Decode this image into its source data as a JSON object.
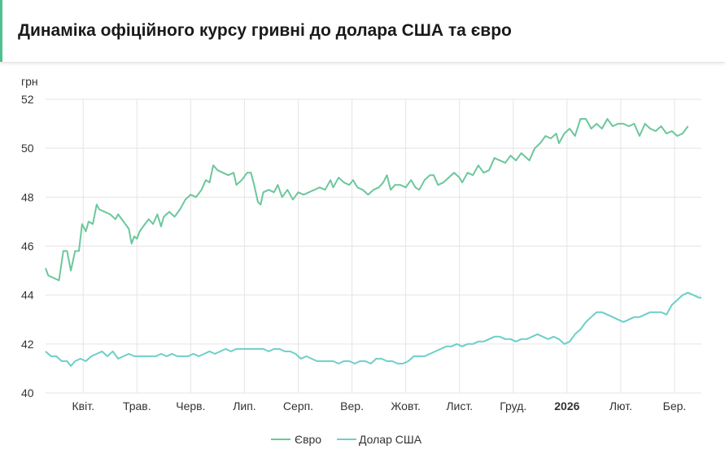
{
  "header": {
    "title": "Динаміка офіційного курсу гривні до долара США та євро"
  },
  "chart_data": {
    "type": "line",
    "title": "Динаміка офіційного курсу гривні до долара США та євро",
    "ylabel": "грн",
    "ylim": [
      40,
      52
    ],
    "yticks": [
      40,
      42,
      44,
      46,
      48,
      50,
      52
    ],
    "xlim": [
      0,
      12.2
    ],
    "xticks": [
      {
        "label": "Квіт.",
        "x": 0.7,
        "bold": false
      },
      {
        "label": "Трав.",
        "x": 1.7,
        "bold": false
      },
      {
        "label": "Черв.",
        "x": 2.7,
        "bold": false
      },
      {
        "label": "Лип.",
        "x": 3.7,
        "bold": false
      },
      {
        "label": "Серп.",
        "x": 4.7,
        "bold": false
      },
      {
        "label": "Вер.",
        "x": 5.7,
        "bold": false
      },
      {
        "label": "Жовт.",
        "x": 6.7,
        "bold": false
      },
      {
        "label": "Лист.",
        "x": 7.7,
        "bold": false
      },
      {
        "label": "Груд.",
        "x": 8.7,
        "bold": false
      },
      {
        "label": "2026",
        "x": 9.7,
        "bold": true
      },
      {
        "label": "Лют.",
        "x": 10.7,
        "bold": false
      },
      {
        "label": "Бер.",
        "x": 11.7,
        "bold": false
      }
    ],
    "grid": true,
    "legend": "bottom",
    "colors": {
      "eur": "#6cc79b",
      "usd": "#6ccfc9"
    },
    "series": [
      {
        "name": "Євро",
        "color": "#6cc79b",
        "points": [
          [
            0.0,
            45.1
          ],
          [
            0.05,
            44.8
          ],
          [
            0.15,
            44.7
          ],
          [
            0.25,
            44.6
          ],
          [
            0.33,
            45.8
          ],
          [
            0.4,
            45.8
          ],
          [
            0.47,
            45.0
          ],
          [
            0.55,
            45.8
          ],
          [
            0.62,
            45.8
          ],
          [
            0.68,
            46.9
          ],
          [
            0.75,
            46.6
          ],
          [
            0.8,
            47.0
          ],
          [
            0.88,
            46.9
          ],
          [
            0.95,
            47.7
          ],
          [
            1.0,
            47.5
          ],
          [
            1.1,
            47.4
          ],
          [
            1.2,
            47.3
          ],
          [
            1.3,
            47.1
          ],
          [
            1.35,
            47.3
          ],
          [
            1.45,
            47.0
          ],
          [
            1.55,
            46.7
          ],
          [
            1.6,
            46.1
          ],
          [
            1.65,
            46.4
          ],
          [
            1.7,
            46.3
          ],
          [
            1.75,
            46.6
          ],
          [
            1.85,
            46.9
          ],
          [
            1.92,
            47.1
          ],
          [
            2.0,
            46.9
          ],
          [
            2.08,
            47.3
          ],
          [
            2.15,
            46.8
          ],
          [
            2.2,
            47.2
          ],
          [
            2.3,
            47.4
          ],
          [
            2.4,
            47.2
          ],
          [
            2.5,
            47.5
          ],
          [
            2.6,
            47.9
          ],
          [
            2.7,
            48.1
          ],
          [
            2.8,
            48.0
          ],
          [
            2.9,
            48.3
          ],
          [
            2.98,
            48.7
          ],
          [
            3.05,
            48.6
          ],
          [
            3.12,
            49.3
          ],
          [
            3.2,
            49.1
          ],
          [
            3.3,
            49.0
          ],
          [
            3.4,
            48.9
          ],
          [
            3.5,
            49.0
          ],
          [
            3.55,
            48.5
          ],
          [
            3.65,
            48.7
          ],
          [
            3.75,
            49.0
          ],
          [
            3.82,
            49.0
          ],
          [
            3.88,
            48.5
          ],
          [
            3.95,
            47.8
          ],
          [
            4.0,
            47.7
          ],
          [
            4.05,
            48.2
          ],
          [
            4.15,
            48.3
          ],
          [
            4.25,
            48.2
          ],
          [
            4.32,
            48.5
          ],
          [
            4.4,
            48.0
          ],
          [
            4.5,
            48.3
          ],
          [
            4.6,
            47.9
          ],
          [
            4.7,
            48.2
          ],
          [
            4.8,
            48.1
          ],
          [
            4.9,
            48.2
          ],
          [
            5.0,
            48.3
          ],
          [
            5.1,
            48.4
          ],
          [
            5.2,
            48.3
          ],
          [
            5.3,
            48.7
          ],
          [
            5.35,
            48.4
          ],
          [
            5.45,
            48.8
          ],
          [
            5.55,
            48.6
          ],
          [
            5.65,
            48.5
          ],
          [
            5.72,
            48.7
          ],
          [
            5.8,
            48.4
          ],
          [
            5.9,
            48.3
          ],
          [
            6.0,
            48.1
          ],
          [
            6.1,
            48.3
          ],
          [
            6.2,
            48.4
          ],
          [
            6.28,
            48.6
          ],
          [
            6.35,
            48.9
          ],
          [
            6.42,
            48.3
          ],
          [
            6.5,
            48.5
          ],
          [
            6.6,
            48.5
          ],
          [
            6.7,
            48.4
          ],
          [
            6.8,
            48.7
          ],
          [
            6.88,
            48.4
          ],
          [
            6.95,
            48.3
          ],
          [
            7.05,
            48.7
          ],
          [
            7.15,
            48.9
          ],
          [
            7.22,
            48.9
          ],
          [
            7.3,
            48.5
          ],
          [
            7.4,
            48.6
          ],
          [
            7.5,
            48.8
          ],
          [
            7.6,
            49.0
          ],
          [
            7.7,
            48.8
          ],
          [
            7.75,
            48.6
          ],
          [
            7.85,
            49.0
          ],
          [
            7.95,
            48.9
          ],
          [
            8.05,
            49.3
          ],
          [
            8.15,
            49.0
          ],
          [
            8.25,
            49.1
          ],
          [
            8.35,
            49.6
          ],
          [
            8.45,
            49.5
          ],
          [
            8.55,
            49.4
          ],
          [
            8.65,
            49.7
          ],
          [
            8.75,
            49.5
          ],
          [
            8.85,
            49.8
          ],
          [
            8.95,
            49.6
          ],
          [
            9.0,
            49.5
          ],
          [
            9.1,
            50.0
          ],
          [
            9.2,
            50.2
          ],
          [
            9.3,
            50.5
          ],
          [
            9.4,
            50.4
          ],
          [
            9.5,
            50.6
          ],
          [
            9.55,
            50.2
          ],
          [
            9.65,
            50.6
          ],
          [
            9.75,
            50.8
          ],
          [
            9.85,
            50.5
          ],
          [
            9.95,
            51.2
          ],
          [
            10.05,
            51.2
          ],
          [
            10.15,
            50.8
          ],
          [
            10.25,
            51.0
          ],
          [
            10.35,
            50.8
          ],
          [
            10.45,
            51.2
          ],
          [
            10.55,
            50.9
          ],
          [
            10.65,
            51.0
          ],
          [
            10.75,
            51.0
          ],
          [
            10.85,
            50.9
          ],
          [
            10.95,
            51.0
          ],
          [
            11.05,
            50.5
          ],
          [
            11.15,
            51.0
          ],
          [
            11.25,
            50.8
          ],
          [
            11.35,
            50.7
          ],
          [
            11.45,
            50.9
          ],
          [
            11.55,
            50.6
          ],
          [
            11.65,
            50.7
          ],
          [
            11.75,
            50.5
          ],
          [
            11.85,
            50.6
          ],
          [
            11.95,
            50.9
          ]
        ]
      },
      {
        "name": "Долар США",
        "color": "#6ccfc9",
        "points": [
          [
            0.0,
            41.7
          ],
          [
            0.1,
            41.5
          ],
          [
            0.2,
            41.5
          ],
          [
            0.3,
            41.3
          ],
          [
            0.4,
            41.3
          ],
          [
            0.47,
            41.1
          ],
          [
            0.55,
            41.3
          ],
          [
            0.65,
            41.4
          ],
          [
            0.75,
            41.3
          ],
          [
            0.85,
            41.5
          ],
          [
            0.95,
            41.6
          ],
          [
            1.05,
            41.7
          ],
          [
            1.15,
            41.5
          ],
          [
            1.25,
            41.7
          ],
          [
            1.35,
            41.4
          ],
          [
            1.45,
            41.5
          ],
          [
            1.55,
            41.6
          ],
          [
            1.65,
            41.5
          ],
          [
            1.75,
            41.5
          ],
          [
            1.85,
            41.5
          ],
          [
            1.95,
            41.5
          ],
          [
            2.05,
            41.5
          ],
          [
            2.15,
            41.6
          ],
          [
            2.25,
            41.5
          ],
          [
            2.35,
            41.6
          ],
          [
            2.45,
            41.5
          ],
          [
            2.55,
            41.5
          ],
          [
            2.65,
            41.5
          ],
          [
            2.75,
            41.6
          ],
          [
            2.85,
            41.5
          ],
          [
            2.95,
            41.6
          ],
          [
            3.05,
            41.7
          ],
          [
            3.15,
            41.6
          ],
          [
            3.25,
            41.7
          ],
          [
            3.35,
            41.8
          ],
          [
            3.45,
            41.7
          ],
          [
            3.55,
            41.8
          ],
          [
            3.65,
            41.8
          ],
          [
            3.75,
            41.8
          ],
          [
            3.85,
            41.8
          ],
          [
            3.95,
            41.8
          ],
          [
            4.05,
            41.8
          ],
          [
            4.15,
            41.7
          ],
          [
            4.25,
            41.8
          ],
          [
            4.35,
            41.8
          ],
          [
            4.45,
            41.7
          ],
          [
            4.55,
            41.7
          ],
          [
            4.65,
            41.6
          ],
          [
            4.75,
            41.4
          ],
          [
            4.85,
            41.5
          ],
          [
            4.95,
            41.4
          ],
          [
            5.05,
            41.3
          ],
          [
            5.15,
            41.3
          ],
          [
            5.25,
            41.3
          ],
          [
            5.35,
            41.3
          ],
          [
            5.45,
            41.2
          ],
          [
            5.55,
            41.3
          ],
          [
            5.65,
            41.3
          ],
          [
            5.75,
            41.2
          ],
          [
            5.85,
            41.3
          ],
          [
            5.95,
            41.3
          ],
          [
            6.05,
            41.2
          ],
          [
            6.15,
            41.4
          ],
          [
            6.25,
            41.4
          ],
          [
            6.35,
            41.3
          ],
          [
            6.45,
            41.3
          ],
          [
            6.55,
            41.2
          ],
          [
            6.65,
            41.2
          ],
          [
            6.75,
            41.3
          ],
          [
            6.85,
            41.5
          ],
          [
            6.95,
            41.5
          ],
          [
            7.05,
            41.5
          ],
          [
            7.15,
            41.6
          ],
          [
            7.25,
            41.7
          ],
          [
            7.35,
            41.8
          ],
          [
            7.45,
            41.9
          ],
          [
            7.55,
            41.9
          ],
          [
            7.65,
            42.0
          ],
          [
            7.75,
            41.9
          ],
          [
            7.85,
            42.0
          ],
          [
            7.95,
            42.0
          ],
          [
            8.05,
            42.1
          ],
          [
            8.15,
            42.1
          ],
          [
            8.25,
            42.2
          ],
          [
            8.35,
            42.3
          ],
          [
            8.45,
            42.3
          ],
          [
            8.55,
            42.2
          ],
          [
            8.65,
            42.2
          ],
          [
            8.75,
            42.1
          ],
          [
            8.85,
            42.2
          ],
          [
            8.95,
            42.2
          ],
          [
            9.05,
            42.3
          ],
          [
            9.15,
            42.4
          ],
          [
            9.25,
            42.3
          ],
          [
            9.35,
            42.2
          ],
          [
            9.45,
            42.3
          ],
          [
            9.55,
            42.2
          ],
          [
            9.65,
            42.0
          ],
          [
            9.75,
            42.1
          ],
          [
            9.85,
            42.4
          ],
          [
            9.95,
            42.6
          ],
          [
            10.05,
            42.9
          ],
          [
            10.15,
            43.1
          ],
          [
            10.25,
            43.3
          ],
          [
            10.35,
            43.3
          ],
          [
            10.45,
            43.2
          ],
          [
            10.55,
            43.1
          ],
          [
            10.65,
            43.0
          ],
          [
            10.75,
            42.9
          ],
          [
            10.85,
            43.0
          ],
          [
            10.95,
            43.1
          ],
          [
            11.05,
            43.1
          ],
          [
            11.15,
            43.2
          ],
          [
            11.25,
            43.3
          ],
          [
            11.35,
            43.3
          ],
          [
            11.45,
            43.3
          ],
          [
            11.55,
            43.2
          ],
          [
            11.65,
            43.6
          ],
          [
            11.75,
            43.8
          ],
          [
            11.85,
            44.0
          ],
          [
            11.95,
            44.1
          ],
          [
            12.05,
            44.0
          ],
          [
            12.15,
            43.9
          ],
          [
            12.2,
            43.9
          ]
        ]
      }
    ]
  }
}
